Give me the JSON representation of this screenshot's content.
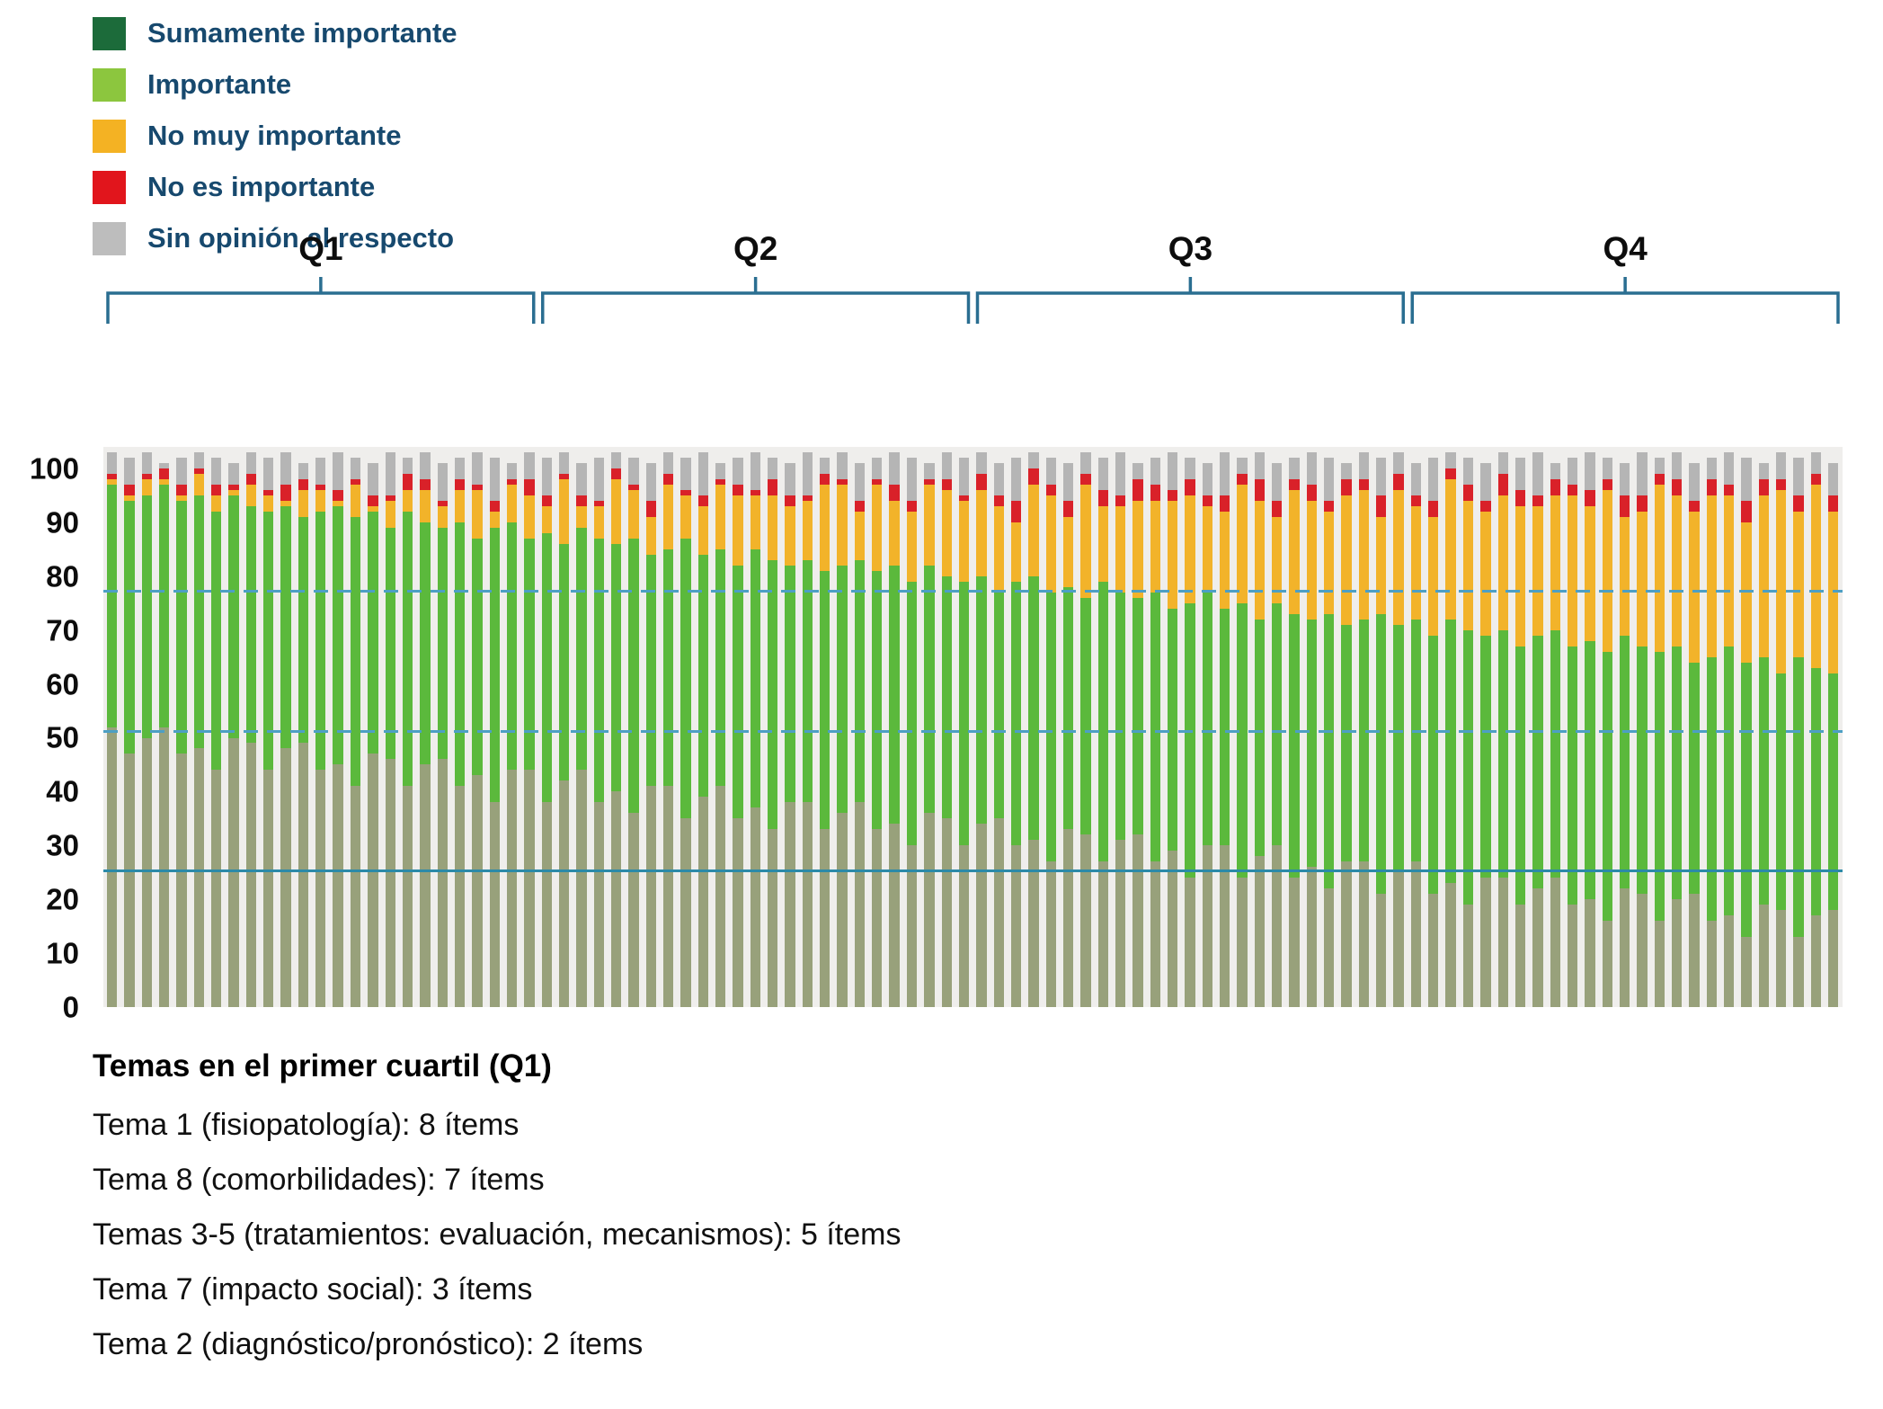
{
  "legend": {
    "items": [
      {
        "label": "Sumamente importante",
        "color": "#1c6b3a"
      },
      {
        "label": "Importante",
        "color": "#8cc63e"
      },
      {
        "label": "No muy importante",
        "color": "#f4b223"
      },
      {
        "label": "No es importante",
        "color": "#e1151c"
      },
      {
        "label": "Sin opinión al respecto",
        "color": "#bdbdbd"
      }
    ],
    "label_color": "#17496e"
  },
  "footnotes": {
    "title": "Temas en el primer cuartil (Q1)",
    "items": [
      "Tema 1 (fisiopatología): 8 ítems",
      "Tema 8 (comorbilidades): 7 ítems",
      "Temas 3-5 (tratamientos: evaluación, mecanismos): 5 ítems",
      "Tema 7 (impacto social): 3 ítems",
      "Tema 2 (diagnóstico/pronóstico): 2 ítems"
    ]
  },
  "chart_data": {
    "type": "bar",
    "stacked": true,
    "unit": "percent",
    "axis_max": 104,
    "ylim": [
      0,
      100
    ],
    "yticks": [
      0,
      10,
      20,
      30,
      40,
      50,
      60,
      70,
      80,
      90,
      100
    ],
    "grid": false,
    "legend_position": "top-left",
    "bracket_color": "#2a6e91",
    "series": [
      {
        "key": "sumamente-importante",
        "name": "Sumamente importante",
        "color": "#98a17b"
      },
      {
        "key": "importante",
        "name": "Importante",
        "color": "#5bb93c"
      },
      {
        "key": "no-muy-importante",
        "name": "No muy importante",
        "color": "#f2b32a"
      },
      {
        "key": "no-es-importante",
        "name": "No es importante",
        "color": "#d92129"
      },
      {
        "key": "sin-opinion",
        "name": "Sin opinión al respecto",
        "color": "#b5b5b5"
      }
    ],
    "reference_lines": [
      {
        "value": 77,
        "style": "dashed",
        "color": "#4d9fc4"
      },
      {
        "value": 51,
        "style": "dashed",
        "color": "#4d9fc4"
      },
      {
        "value": 25,
        "style": "solid",
        "color": "#2c8aa8"
      }
    ],
    "quartile_ranges": [
      {
        "label": "Q1",
        "from_bar": 1,
        "to_bar": 25
      },
      {
        "label": "Q2",
        "from_bar": 26,
        "to_bar": 50
      },
      {
        "label": "Q3",
        "from_bar": 51,
        "to_bar": 75
      },
      {
        "label": "Q4",
        "from_bar": 76,
        "to_bar": 100
      }
    ],
    "bars_note": "each row = [Sumamente importante, Importante, No muy importante, No es importante, Sin opinión] in % (estimated from pixels)",
    "bars": [
      [
        52,
        45,
        1,
        1,
        4
      ],
      [
        47,
        47,
        1,
        2,
        5
      ],
      [
        50,
        45,
        3,
        1,
        4
      ],
      [
        52,
        45,
        1,
        2,
        1
      ],
      [
        47,
        47,
        1,
        2,
        5
      ],
      [
        48,
        47,
        4,
        1,
        3
      ],
      [
        44,
        48,
        3,
        2,
        5
      ],
      [
        50,
        45,
        1,
        1,
        4
      ],
      [
        49,
        44,
        4,
        2,
        4
      ],
      [
        44,
        48,
        3,
        1,
        6
      ],
      [
        48,
        45,
        1,
        3,
        6
      ],
      [
        49,
        42,
        5,
        2,
        3
      ],
      [
        44,
        48,
        4,
        1,
        5
      ],
      [
        45,
        48,
        1,
        2,
        7
      ],
      [
        41,
        50,
        6,
        1,
        4
      ],
      [
        47,
        45,
        1,
        2,
        6
      ],
      [
        46,
        43,
        5,
        1,
        8
      ],
      [
        41,
        51,
        4,
        3,
        3
      ],
      [
        45,
        45,
        6,
        2,
        5
      ],
      [
        46,
        43,
        4,
        1,
        7
      ],
      [
        41,
        49,
        6,
        2,
        4
      ],
      [
        43,
        44,
        9,
        1,
        6
      ],
      [
        38,
        51,
        3,
        2,
        8
      ],
      [
        44,
        46,
        7,
        1,
        3
      ],
      [
        44,
        43,
        8,
        3,
        5
      ],
      [
        38,
        50,
        5,
        2,
        7
      ],
      [
        42,
        44,
        12,
        1,
        4
      ],
      [
        44,
        45,
        4,
        2,
        6
      ],
      [
        38,
        49,
        6,
        1,
        8
      ],
      [
        40,
        46,
        12,
        2,
        3
      ],
      [
        36,
        51,
        9,
        1,
        5
      ],
      [
        41,
        43,
        7,
        3,
        7
      ],
      [
        41,
        44,
        12,
        2,
        4
      ],
      [
        35,
        52,
        8,
        1,
        6
      ],
      [
        39,
        45,
        9,
        2,
        8
      ],
      [
        41,
        44,
        12,
        1,
        3
      ],
      [
        35,
        47,
        13,
        2,
        5
      ],
      [
        37,
        48,
        10,
        1,
        7
      ],
      [
        33,
        50,
        12,
        3,
        4
      ],
      [
        38,
        44,
        11,
        2,
        6
      ],
      [
        38,
        45,
        11,
        1,
        8
      ],
      [
        33,
        48,
        16,
        2,
        3
      ],
      [
        36,
        46,
        15,
        1,
        5
      ],
      [
        38,
        45,
        9,
        2,
        7
      ],
      [
        33,
        48,
        16,
        1,
        4
      ],
      [
        34,
        48,
        12,
        3,
        6
      ],
      [
        30,
        49,
        13,
        2,
        8
      ],
      [
        36,
        46,
        15,
        1,
        3
      ],
      [
        35,
        45,
        16,
        2,
        5
      ],
      [
        30,
        49,
        15,
        1,
        7
      ],
      [
        34,
        46,
        16,
        3,
        4
      ],
      [
        35,
        42,
        16,
        2,
        6
      ],
      [
        30,
        49,
        11,
        4,
        8
      ],
      [
        31,
        49,
        17,
        3,
        3
      ],
      [
        27,
        50,
        18,
        2,
        5
      ],
      [
        33,
        45,
        13,
        3,
        7
      ],
      [
        32,
        44,
        21,
        2,
        4
      ],
      [
        27,
        52,
        14,
        3,
        6
      ],
      [
        31,
        46,
        16,
        2,
        8
      ],
      [
        32,
        44,
        18,
        4,
        3
      ],
      [
        27,
        50,
        17,
        3,
        5
      ],
      [
        29,
        45,
        20,
        2,
        7
      ],
      [
        24,
        51,
        20,
        3,
        4
      ],
      [
        30,
        47,
        16,
        2,
        6
      ],
      [
        30,
        44,
        18,
        3,
        8
      ],
      [
        24,
        51,
        22,
        2,
        3
      ],
      [
        28,
        44,
        22,
        4,
        5
      ],
      [
        30,
        45,
        16,
        3,
        7
      ],
      [
        24,
        49,
        23,
        2,
        4
      ],
      [
        26,
        46,
        22,
        3,
        6
      ],
      [
        22,
        51,
        19,
        2,
        8
      ],
      [
        27,
        44,
        24,
        3,
        3
      ],
      [
        27,
        45,
        24,
        2,
        5
      ],
      [
        21,
        52,
        18,
        4,
        7
      ],
      [
        25,
        46,
        25,
        3,
        4
      ],
      [
        27,
        45,
        21,
        2,
        6
      ],
      [
        21,
        48,
        22,
        3,
        8
      ],
      [
        23,
        49,
        26,
        2,
        3
      ],
      [
        19,
        51,
        24,
        3,
        5
      ],
      [
        24,
        45,
        23,
        2,
        7
      ],
      [
        24,
        46,
        25,
        4,
        4
      ],
      [
        19,
        48,
        26,
        3,
        6
      ],
      [
        22,
        47,
        24,
        2,
        8
      ],
      [
        24,
        46,
        25,
        3,
        3
      ],
      [
        19,
        48,
        28,
        2,
        5
      ],
      [
        20,
        48,
        25,
        3,
        7
      ],
      [
        16,
        50,
        30,
        2,
        4
      ],
      [
        22,
        47,
        22,
        4,
        6
      ],
      [
        21,
        46,
        25,
        3,
        8
      ],
      [
        16,
        50,
        31,
        2,
        3
      ],
      [
        20,
        47,
        28,
        3,
        5
      ],
      [
        21,
        43,
        28,
        2,
        7
      ],
      [
        16,
        49,
        30,
        3,
        4
      ],
      [
        17,
        50,
        28,
        2,
        6
      ],
      [
        13,
        51,
        26,
        4,
        8
      ],
      [
        19,
        46,
        30,
        3,
        3
      ],
      [
        18,
        44,
        34,
        2,
        5
      ],
      [
        13,
        52,
        27,
        3,
        7
      ],
      [
        17,
        46,
        34,
        2,
        4
      ],
      [
        18,
        44,
        30,
        3,
        6
      ]
    ]
  }
}
